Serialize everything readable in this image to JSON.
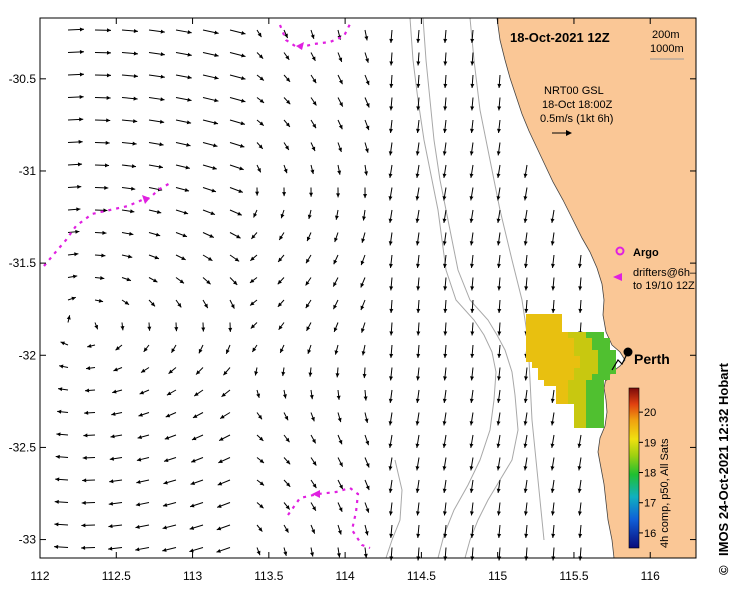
{
  "title": "18-Oct-2021 12Z",
  "depth_contours": {
    "first": "200m",
    "second": "1000m"
  },
  "velocity_legend": {
    "line1": "NRT00 GSL",
    "line2": "18-Oct 18:00Z",
    "line3": "0.5m/s (1kt 6h)"
  },
  "place_name": "Perth",
  "legend": {
    "argo_label": "Argo",
    "drifters_line1": "drifters@6h–",
    "drifters_line2": "to 19/10 12Z"
  },
  "colorbar": {
    "label": "4h comp, p50, All Sats",
    "ticks": [
      "16",
      "17",
      "18",
      "19",
      "20"
    ],
    "range": [
      15.5,
      20.8
    ]
  },
  "x_ticks": [
    "112",
    "112.5",
    "113",
    "113.5",
    "114",
    "114.5",
    "115",
    "115.5",
    "116"
  ],
  "y_ticks": [
    "-30.5",
    "-31",
    "-31.5",
    "-32",
    "-32.5",
    "-33"
  ],
  "credit": "IMOS 24-Oct-2021 12:32 Hobart",
  "copyright": "©",
  "colors": {
    "land": "#FAC796",
    "drifter": "#E020E0",
    "contour": "#A8A8A8",
    "arrow": "#000000"
  }
}
